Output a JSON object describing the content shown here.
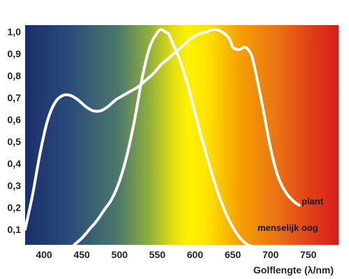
{
  "chart_data": {
    "type": "line",
    "xlabel": "Golflengte (λ/nm)",
    "ylabel": "",
    "title": "",
    "xlim": [
      375,
      790
    ],
    "ylim": [
      0.03,
      1.03
    ],
    "x_ticks": [
      "400",
      "450",
      "500",
      "550",
      "600",
      "650",
      "700",
      "750"
    ],
    "x_tick_values": [
      400,
      450,
      500,
      550,
      600,
      650,
      700,
      750
    ],
    "y_ticks": [
      "0,1",
      "0,2",
      "0,3",
      "0,4",
      "0,5",
      "0,6",
      "0,7",
      "0,8",
      "0,9",
      "1,0"
    ],
    "y_tick_values": [
      0.1,
      0.2,
      0.3,
      0.4,
      0.5,
      0.6,
      0.7,
      0.8,
      0.9,
      1.0
    ],
    "grid": false,
    "background": "visible-spectrum gradient (blue at 400 nm to red at 780 nm)",
    "series": [
      {
        "name": "plant",
        "color": "#ffffff",
        "x": [
          375,
          385,
          395,
          405,
          415,
          425,
          435,
          445,
          455,
          465,
          475,
          485,
          495,
          505,
          515,
          525,
          535,
          545,
          555,
          565,
          575,
          585,
          595,
          605,
          615,
          625,
          635,
          645,
          650,
          655,
          660,
          665,
          670,
          675,
          680,
          690,
          700,
          710,
          720,
          730,
          738
        ],
        "y": [
          0.1,
          0.26,
          0.45,
          0.6,
          0.68,
          0.71,
          0.71,
          0.69,
          0.66,
          0.64,
          0.64,
          0.66,
          0.69,
          0.71,
          0.73,
          0.75,
          0.78,
          0.81,
          0.85,
          0.88,
          0.91,
          0.94,
          0.97,
          0.99,
          1.0,
          1.01,
          1.0,
          0.97,
          0.93,
          0.92,
          0.92,
          0.93,
          0.92,
          0.89,
          0.82,
          0.65,
          0.47,
          0.34,
          0.27,
          0.23,
          0.21
        ]
      },
      {
        "name": "menselijk oog",
        "color": "#ffffff",
        "x": [
          440,
          450,
          460,
          470,
          480,
          490,
          500,
          510,
          520,
          530,
          540,
          550,
          555,
          560,
          565,
          570,
          580,
          590,
          600,
          610,
          620,
          630,
          640,
          650,
          660,
          670,
          680,
          690,
          695
        ],
        "y": [
          0.03,
          0.06,
          0.1,
          0.14,
          0.19,
          0.24,
          0.32,
          0.44,
          0.6,
          0.79,
          0.93,
          0.995,
          1.01,
          1.0,
          0.99,
          0.95,
          0.87,
          0.76,
          0.63,
          0.5,
          0.38,
          0.27,
          0.18,
          0.11,
          0.06,
          0.03,
          0.02,
          0.01,
          0.0
        ]
      }
    ]
  }
}
